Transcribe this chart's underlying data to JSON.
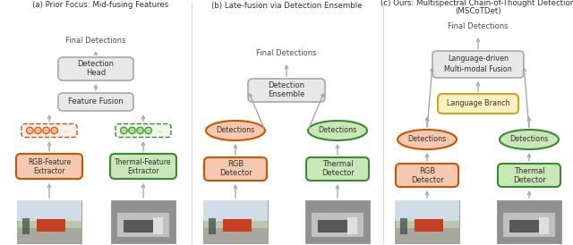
{
  "title_a": "(a) Prior Focus: Mid-fusing Features",
  "title_b": "(b) Late-fusion via Detection Ensemble",
  "title_c_line1": "(c) Ours: Multispectral Chain-of-Thought Detection",
  "title_c_line2": "(MSCoTDet)",
  "rgb_color": "#F5C9B0",
  "rgb_border": "#CC5500",
  "thermal_color": "#C8E8B8",
  "thermal_border": "#3A8A30",
  "grey_box_color": "#E8E8E8",
  "grey_box_border": "#A8A8A8",
  "yellow_color": "#FAF0C0",
  "yellow_border": "#C8A820",
  "arrow_color": "#A8A8A8",
  "text_color": "#303030",
  "bg_color": "#FFFFFF",
  "divider_color": "#D0D0D0"
}
